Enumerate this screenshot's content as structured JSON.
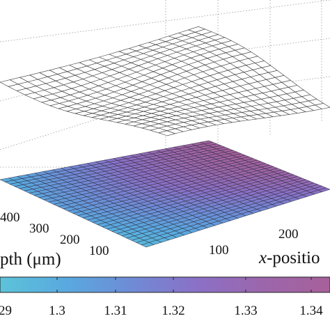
{
  "chart_data": {
    "type": "surface",
    "xlabel_italic": "x",
    "xlabel_rest": "-positio",
    "ylabel": "pth (μm)",
    "x_ticks": [
      "100",
      "200"
    ],
    "y_ticks": [
      "100",
      "200",
      "300",
      "400"
    ],
    "colorbar_ticks": [
      "29",
      "1.3",
      "1.31",
      "1.32",
      "1.33",
      "1.34"
    ],
    "colorbar": {
      "min": 1.289,
      "max": 1.345,
      "colors": [
        "#5cc3d9",
        "#59a9df",
        "#6f8bd6",
        "#8b70c6",
        "#9c66ab",
        "#a7609a"
      ]
    },
    "surfaces": [
      {
        "name": "upper",
        "style": "white-mesh",
        "grid": [
          20,
          20
        ]
      },
      {
        "name": "lower",
        "style": "colored",
        "grid": [
          30,
          24
        ]
      }
    ],
    "grid": true
  }
}
